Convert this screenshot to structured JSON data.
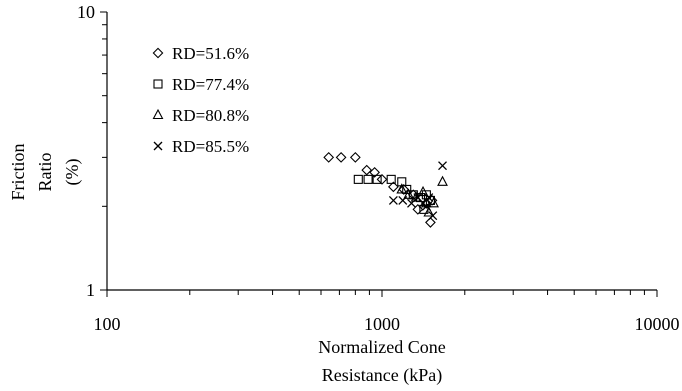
{
  "chart_data": {
    "type": "scatter",
    "title": "",
    "xlabel_lines": [
      "Normalized Cone",
      "Resistance (kPa)"
    ],
    "ylabel_lines": [
      "Friction",
      "Ratio",
      "(%)"
    ],
    "x_scale": "log",
    "y_scale": "log",
    "xlim": [
      100,
      10000
    ],
    "ylim": [
      1,
      10
    ],
    "x_ticks": [
      100,
      1000,
      10000
    ],
    "x_tick_labels": [
      "100",
      "1000",
      "10000"
    ],
    "y_ticks": [
      1,
      10
    ],
    "y_tick_labels": [
      "1",
      "10"
    ],
    "grid": false,
    "legend_position": "top-left",
    "series": [
      {
        "name": "RD=51.6%",
        "marker": "diamond",
        "points": [
          [
            640,
            3.0
          ],
          [
            710,
            3.0
          ],
          [
            800,
            3.0
          ],
          [
            880,
            2.7
          ],
          [
            940,
            2.65
          ],
          [
            1000,
            2.5
          ],
          [
            1100,
            2.35
          ],
          [
            1200,
            2.3
          ],
          [
            1300,
            2.2
          ],
          [
            1350,
            1.95
          ],
          [
            1450,
            2.05
          ],
          [
            1500,
            1.75
          ],
          [
            1520,
            2.1
          ]
        ]
      },
      {
        "name": "RD=77.4%",
        "marker": "square",
        "points": [
          [
            820,
            2.5
          ],
          [
            890,
            2.5
          ],
          [
            960,
            2.5
          ],
          [
            1080,
            2.5
          ],
          [
            1180,
            2.45
          ],
          [
            1230,
            2.3
          ],
          [
            1300,
            2.2
          ],
          [
            1380,
            2.15
          ],
          [
            1420,
            1.95
          ],
          [
            1450,
            2.2
          ],
          [
            1500,
            2.1
          ]
        ]
      },
      {
        "name": "RD=80.8%",
        "marker": "triangle",
        "points": [
          [
            1180,
            2.3
          ],
          [
            1250,
            2.2
          ],
          [
            1330,
            2.15
          ],
          [
            1410,
            2.25
          ],
          [
            1450,
            2.05
          ],
          [
            1480,
            1.9
          ],
          [
            1540,
            2.05
          ],
          [
            1660,
            2.45
          ]
        ]
      },
      {
        "name": "RD=85.5%",
        "marker": "x",
        "points": [
          [
            1100,
            2.1
          ],
          [
            1190,
            2.1
          ],
          [
            1280,
            2.05
          ],
          [
            1350,
            2.15
          ],
          [
            1410,
            2.05
          ],
          [
            1450,
            2.0
          ],
          [
            1480,
            2.15
          ],
          [
            1530,
            1.85
          ],
          [
            1660,
            2.8
          ]
        ]
      }
    ]
  }
}
